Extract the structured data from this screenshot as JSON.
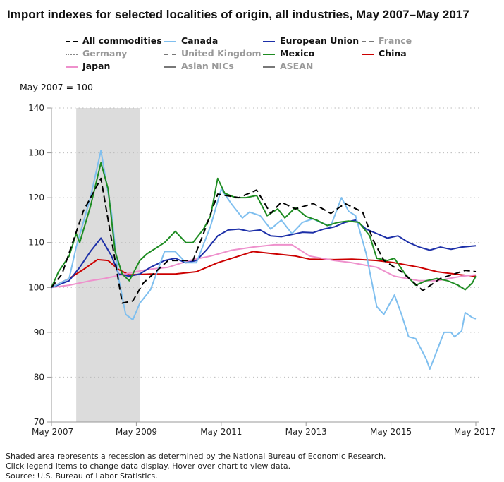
{
  "title": "Import indexes for selected localities of origin, all industries, May 2007–May 2017",
  "unit_label": "May 2007 = 100",
  "notes": [
    "Shaded area represents a recession as determined by the National Bureau of Economic Research.",
    "Click legend items to change data display. Hover over chart to view data.",
    "Source: U.S. Bureau of Labor Statistics."
  ],
  "legend": [
    {
      "name": "All commodities",
      "color": "#000000",
      "dash": "dashed",
      "active": true
    },
    {
      "name": "Canada",
      "color": "#7fbfef",
      "dash": "solid",
      "active": true
    },
    {
      "name": "European Union",
      "color": "#1c2fa8",
      "dash": "solid",
      "active": true
    },
    {
      "name": "France",
      "color": "#777777",
      "dash": "dashed",
      "active": false
    },
    {
      "name": "Germany",
      "color": "#888888",
      "dash": "dotted",
      "active": false
    },
    {
      "name": "United Kingdom",
      "color": "#777777",
      "dash": "dashdot",
      "active": false
    },
    {
      "name": "Mexico",
      "color": "#1e8c22",
      "dash": "solid",
      "active": true
    },
    {
      "name": "China",
      "color": "#cc0000",
      "dash": "solid",
      "active": true
    },
    {
      "name": "Japan",
      "color": "#ee90cc",
      "dash": "solid",
      "active": true
    },
    {
      "name": "Asian NICs",
      "color": "#777777",
      "dash": "solid",
      "active": false
    },
    {
      "name": "ASEAN",
      "color": "#777777",
      "dash": "solid",
      "active": false
    }
  ],
  "chart_data": {
    "type": "line",
    "title": "Import indexes for selected localities of origin, all industries, May 2007–May 2017",
    "ylabel": "May 2007 = 100",
    "ylim": [
      70,
      140
    ],
    "yticks": [
      70,
      80,
      90,
      100,
      110,
      120,
      130,
      140
    ],
    "xlim": [
      "2007-05",
      "2017-05"
    ],
    "xticks": [
      {
        "date": "2007-05",
        "label": "May 2007"
      },
      {
        "date": "2009-05",
        "label": "May 2009"
      },
      {
        "date": "2011-05",
        "label": "May 2011"
      },
      {
        "date": "2013-05",
        "label": "May 2013"
      },
      {
        "date": "2015-05",
        "label": "May 2015"
      },
      {
        "date": "2017-05",
        "label": "May 2017"
      }
    ],
    "grid": "horizontal dotted",
    "recession": [
      "2007-12",
      "2009-06"
    ],
    "series": [
      {
        "name": "All commodities",
        "points": [
          [
            "2007-05",
            100
          ],
          [
            "2007-08",
            103
          ],
          [
            "2007-11",
            110
          ],
          [
            "2008-02",
            117
          ],
          [
            "2008-07",
            124.3
          ],
          [
            "2008-11",
            106
          ],
          [
            "2009-01",
            96.5
          ],
          [
            "2009-04",
            97
          ],
          [
            "2009-07",
            101
          ],
          [
            "2010-02",
            106
          ],
          [
            "2010-09",
            106
          ],
          [
            "2010-12",
            112
          ],
          [
            "2011-04",
            120.8
          ],
          [
            "2011-10",
            120
          ],
          [
            "2012-03",
            121.7
          ],
          [
            "2012-07",
            116.5
          ],
          [
            "2012-10",
            119
          ],
          [
            "2013-02",
            117.5
          ],
          [
            "2013-07",
            118.7
          ],
          [
            "2013-12",
            116.5
          ],
          [
            "2014-04",
            118.7
          ],
          [
            "2014-09",
            116.8
          ],
          [
            "2014-12",
            110.5
          ],
          [
            "2015-03",
            106
          ],
          [
            "2015-08",
            103.5
          ],
          [
            "2016-02",
            99.3
          ],
          [
            "2016-07",
            102
          ],
          [
            "2017-02",
            103.8
          ],
          [
            "2017-05",
            103.5
          ]
        ]
      },
      {
        "name": "Canada",
        "points": [
          [
            "2007-05",
            100
          ],
          [
            "2007-10",
            102
          ],
          [
            "2007-12",
            109
          ],
          [
            "2008-04",
            120
          ],
          [
            "2008-07",
            130.5
          ],
          [
            "2008-10",
            116.5
          ],
          [
            "2008-12",
            102
          ],
          [
            "2009-02",
            94
          ],
          [
            "2009-04",
            92.8
          ],
          [
            "2009-06",
            96.5
          ],
          [
            "2009-09",
            99.5
          ],
          [
            "2010-01",
            108
          ],
          [
            "2010-04",
            108
          ],
          [
            "2010-07",
            105.5
          ],
          [
            "2010-10",
            105.5
          ],
          [
            "2011-02",
            113.7
          ],
          [
            "2011-05",
            121.9
          ],
          [
            "2011-08",
            118.5
          ],
          [
            "2011-11",
            115.5
          ],
          [
            "2012-01",
            116.8
          ],
          [
            "2012-04",
            116
          ],
          [
            "2012-07",
            113
          ],
          [
            "2012-10",
            115
          ],
          [
            "2013-01",
            112
          ],
          [
            "2013-04",
            114.5
          ],
          [
            "2013-07",
            115.3
          ],
          [
            "2013-09",
            114.5
          ],
          [
            "2013-12",
            113.7
          ],
          [
            "2014-03",
            120
          ],
          [
            "2014-05",
            117
          ],
          [
            "2014-07",
            116
          ],
          [
            "2014-10",
            107.5
          ],
          [
            "2015-01",
            95.7
          ],
          [
            "2015-03",
            94
          ],
          [
            "2015-06",
            98.3
          ],
          [
            "2015-08",
            94
          ],
          [
            "2015-10",
            89
          ],
          [
            "2015-12",
            88.6
          ],
          [
            "2016-03",
            84
          ],
          [
            "2016-04",
            81.8
          ],
          [
            "2016-08",
            90
          ],
          [
            "2016-10",
            90
          ],
          [
            "2016-11",
            89
          ],
          [
            "2017-01",
            90.3
          ],
          [
            "2017-02",
            94.4
          ],
          [
            "2017-04",
            93.3
          ],
          [
            "2017-05",
            93
          ]
        ]
      },
      {
        "name": "European Union",
        "points": [
          [
            "2007-05",
            100
          ],
          [
            "2007-10",
            101.5
          ],
          [
            "2008-01",
            104.5
          ],
          [
            "2008-04",
            108
          ],
          [
            "2008-07",
            111
          ],
          [
            "2008-10",
            107
          ],
          [
            "2008-12",
            103
          ],
          [
            "2009-03",
            102.5
          ],
          [
            "2009-06",
            103
          ],
          [
            "2009-09",
            104.5
          ],
          [
            "2010-01",
            106
          ],
          [
            "2010-04",
            106.5
          ],
          [
            "2010-07",
            105.5
          ],
          [
            "2010-10",
            106
          ],
          [
            "2011-01",
            108.5
          ],
          [
            "2011-04",
            111.5
          ],
          [
            "2011-07",
            112.8
          ],
          [
            "2011-10",
            113
          ],
          [
            "2012-01",
            112.5
          ],
          [
            "2012-04",
            112.8
          ],
          [
            "2012-07",
            111.5
          ],
          [
            "2012-10",
            111.3
          ],
          [
            "2013-01",
            111.8
          ],
          [
            "2013-04",
            112.3
          ],
          [
            "2013-07",
            112.2
          ],
          [
            "2013-10",
            113
          ],
          [
            "2014-01",
            113.5
          ],
          [
            "2014-04",
            114.5
          ],
          [
            "2014-07",
            115
          ],
          [
            "2014-10",
            113
          ],
          [
            "2015-01",
            112
          ],
          [
            "2015-04",
            111
          ],
          [
            "2015-07",
            111.5
          ],
          [
            "2015-10",
            110
          ],
          [
            "2016-01",
            109
          ],
          [
            "2016-04",
            108.3
          ],
          [
            "2016-07",
            109
          ],
          [
            "2016-10",
            108.5
          ],
          [
            "2017-01",
            109
          ],
          [
            "2017-05",
            109.3
          ]
        ]
      },
      {
        "name": "Mexico",
        "points": [
          [
            "2007-05",
            100
          ],
          [
            "2007-07",
            103.5
          ],
          [
            "2007-10",
            107
          ],
          [
            "2007-12",
            112
          ],
          [
            "2008-01",
            110
          ],
          [
            "2008-04",
            118
          ],
          [
            "2008-07",
            127.8
          ],
          [
            "2008-09",
            122
          ],
          [
            "2008-11",
            108
          ],
          [
            "2009-01",
            103
          ],
          [
            "2009-03",
            101.5
          ],
          [
            "2009-06",
            106
          ],
          [
            "2009-08",
            107.5
          ],
          [
            "2009-11",
            109
          ],
          [
            "2010-01",
            110
          ],
          [
            "2010-04",
            112.5
          ],
          [
            "2010-07",
            110
          ],
          [
            "2010-09",
            110
          ],
          [
            "2010-12",
            113
          ],
          [
            "2011-02",
            116
          ],
          [
            "2011-04",
            124.3
          ],
          [
            "2011-06",
            121
          ],
          [
            "2011-09",
            120
          ],
          [
            "2011-12",
            120
          ],
          [
            "2012-03",
            120.5
          ],
          [
            "2012-06",
            116
          ],
          [
            "2012-09",
            117.5
          ],
          [
            "2012-11",
            115.5
          ],
          [
            "2013-02",
            117.8
          ],
          [
            "2013-05",
            115.8
          ],
          [
            "2013-08",
            115
          ],
          [
            "2013-11",
            113.8
          ],
          [
            "2014-02",
            114.5
          ],
          [
            "2014-05",
            114.8
          ],
          [
            "2014-08",
            114.5
          ],
          [
            "2014-11",
            111.5
          ],
          [
            "2015-01",
            106.5
          ],
          [
            "2015-04",
            106
          ],
          [
            "2015-06",
            106.5
          ],
          [
            "2015-09",
            103
          ],
          [
            "2015-12",
            100.5
          ],
          [
            "2016-03",
            101.5
          ],
          [
            "2016-06",
            102
          ],
          [
            "2016-09",
            101.5
          ],
          [
            "2016-12",
            100.5
          ],
          [
            "2017-02",
            99.5
          ],
          [
            "2017-04",
            101
          ],
          [
            "2017-05",
            102.5
          ]
        ]
      },
      {
        "name": "China",
        "points": [
          [
            "2007-05",
            100
          ],
          [
            "2007-10",
            102
          ],
          [
            "2008-02",
            104
          ],
          [
            "2008-06",
            106.2
          ],
          [
            "2008-09",
            106
          ],
          [
            "2008-12",
            104
          ],
          [
            "2009-03",
            102.8
          ],
          [
            "2009-09",
            103
          ],
          [
            "2010-04",
            103
          ],
          [
            "2010-10",
            103.5
          ],
          [
            "2011-04",
            105.5
          ],
          [
            "2011-10",
            107
          ],
          [
            "2012-02",
            108
          ],
          [
            "2012-08",
            107.5
          ],
          [
            "2013-02",
            107
          ],
          [
            "2013-06",
            106.3
          ],
          [
            "2014-01",
            106.2
          ],
          [
            "2014-06",
            106.3
          ],
          [
            "2015-01",
            106
          ],
          [
            "2015-06",
            105.5
          ],
          [
            "2016-01",
            104.5
          ],
          [
            "2016-06",
            103.5
          ],
          [
            "2017-01",
            102.8
          ],
          [
            "2017-05",
            102.5
          ]
        ]
      },
      {
        "name": "Japan",
        "points": [
          [
            "2007-05",
            100
          ],
          [
            "2007-10",
            100.5
          ],
          [
            "2008-04",
            101.5
          ],
          [
            "2008-08",
            102
          ],
          [
            "2009-02",
            103
          ],
          [
            "2009-08",
            104
          ],
          [
            "2010-02",
            104.5
          ],
          [
            "2010-08",
            106
          ],
          [
            "2011-02",
            107
          ],
          [
            "2011-08",
            108.3
          ],
          [
            "2012-02",
            109
          ],
          [
            "2012-08",
            109.5
          ],
          [
            "2013-01",
            109.5
          ],
          [
            "2013-06",
            107
          ],
          [
            "2014-01",
            106
          ],
          [
            "2014-06",
            105.5
          ],
          [
            "2015-01",
            104.5
          ],
          [
            "2015-06",
            102.5
          ],
          [
            "2016-01",
            101.5
          ],
          [
            "2016-06",
            101.5
          ],
          [
            "2017-01",
            102.5
          ],
          [
            "2017-05",
            102.8
          ]
        ]
      }
    ]
  }
}
